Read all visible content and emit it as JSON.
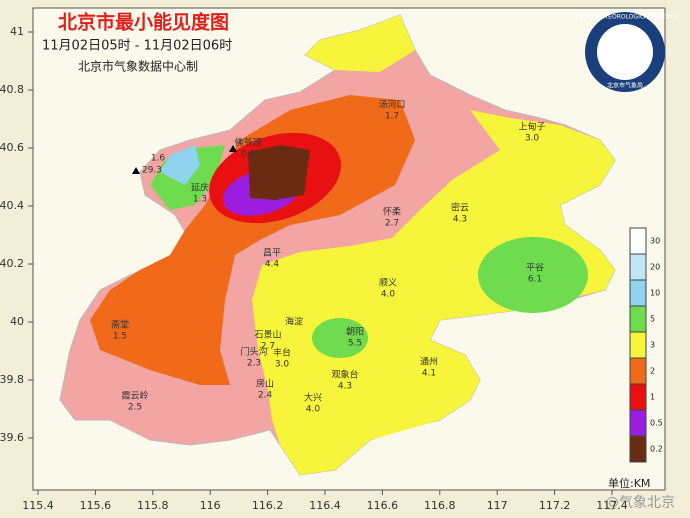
{
  "header": {
    "title": "北京市最小能见度图",
    "period": "11月02日05时 - 11月02日06时",
    "source": "北京市气象数据中心制"
  },
  "logo": {
    "ring": "BEIJING METEOROLOGICAL SERVICE",
    "name": "北京市气象局"
  },
  "axes": {
    "xticks": [
      115.4,
      115.6,
      115.8,
      116,
      116.2,
      116.4,
      116.6,
      116.8,
      117,
      117.2,
      117.4
    ],
    "yticks": [
      41,
      40.8,
      40.6,
      40.4,
      40.2,
      40,
      39.8,
      39.6
    ]
  },
  "stations": [
    {
      "name": "汤河口",
      "value": "1.7"
    },
    {
      "name": "上甸子",
      "value": "3.0"
    },
    {
      "name": "佛爷顶",
      "value": "0.0"
    },
    {
      "value": "1.6"
    },
    {
      "value": "29.3"
    },
    {
      "name": "延庆",
      "value": "1.3"
    },
    {
      "name": "怀柔",
      "value": "2.7"
    },
    {
      "name": "密云",
      "value": "4.3"
    },
    {
      "name": "昌平",
      "value": "4.4"
    },
    {
      "name": "顺义",
      "value": "4.0"
    },
    {
      "name": "平谷",
      "value": "6.1"
    },
    {
      "name": "斋堂",
      "value": "1.5"
    },
    {
      "name": "海淀"
    },
    {
      "name": "石景山",
      "value": "2.7"
    },
    {
      "name": "朝阳",
      "value": "5.5"
    },
    {
      "name": "门头沟",
      "value": "2.3"
    },
    {
      "name": "丰台",
      "value": "3.0"
    },
    {
      "name": "通州",
      "value": "4.1"
    },
    {
      "name": "霞云岭",
      "value": "2.5"
    },
    {
      "name": "房山",
      "value": "2.4"
    },
    {
      "name": "观象台",
      "value": "4.3"
    },
    {
      "name": "大兴",
      "value": "4.0"
    }
  ],
  "legend": {
    "unit": "单位:KM",
    "items": [
      {
        "label": 30,
        "color": "#ffffff"
      },
      {
        "label": 20,
        "color": "#bfe6f5"
      },
      {
        "label": 10,
        "color": "#8fd3ef"
      },
      {
        "label": 5,
        "color": "#6fdc4f"
      },
      {
        "label": 3,
        "color": "#f7f53b"
      },
      {
        "label": 2,
        "color": "#f06a1a"
      },
      {
        "label": 1,
        "color": "#e81010"
      },
      {
        "label": 0.5,
        "color": "#9b1ee0"
      },
      {
        "label": 0.2,
        "color": "#6b2a12"
      }
    ]
  },
  "watermark": "@气象北京"
}
